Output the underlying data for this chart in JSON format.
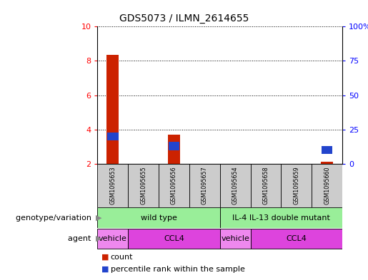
{
  "title": "GDS5073 / ILMN_2614655",
  "samples": [
    "GSM1095653",
    "GSM1095655",
    "GSM1095656",
    "GSM1095657",
    "GSM1095654",
    "GSM1095658",
    "GSM1095659",
    "GSM1095660"
  ],
  "count_values": [
    8.35,
    2.0,
    3.7,
    2.0,
    2.0,
    2.0,
    2.0,
    2.1
  ],
  "percentile_values": [
    20.0,
    0.0,
    13.0,
    0.0,
    0.0,
    0.0,
    0.0,
    10.0
  ],
  "ylim_left": [
    2,
    10
  ],
  "ylim_right": [
    0,
    100
  ],
  "yticks_left": [
    2,
    4,
    6,
    8,
    10
  ],
  "yticks_right": [
    0,
    25,
    50,
    75,
    100
  ],
  "ytick_labels_right": [
    "0",
    "25",
    "50",
    "75",
    "100%"
  ],
  "count_color": "#cc2200",
  "percentile_color": "#2244cc",
  "genotype_groups": [
    {
      "label": "wild type",
      "start": 0,
      "end": 4,
      "color": "#99ee99"
    },
    {
      "label": "IL-4 IL-13 double mutant",
      "start": 4,
      "end": 8,
      "color": "#99ee99"
    }
  ],
  "agent_groups": [
    {
      "label": "vehicle",
      "start": 0,
      "end": 1,
      "color": "#ee88ee"
    },
    {
      "label": "CCL4",
      "start": 1,
      "end": 4,
      "color": "#dd44dd"
    },
    {
      "label": "vehicle",
      "start": 4,
      "end": 5,
      "color": "#ee88ee"
    },
    {
      "label": "CCL4",
      "start": 5,
      "end": 8,
      "color": "#dd44dd"
    }
  ],
  "legend_count_label": "count",
  "legend_pct_label": "percentile rank within the sample",
  "genotype_label": "genotype/variation",
  "agent_label": "agent",
  "sample_bg_color": "#cccccc"
}
